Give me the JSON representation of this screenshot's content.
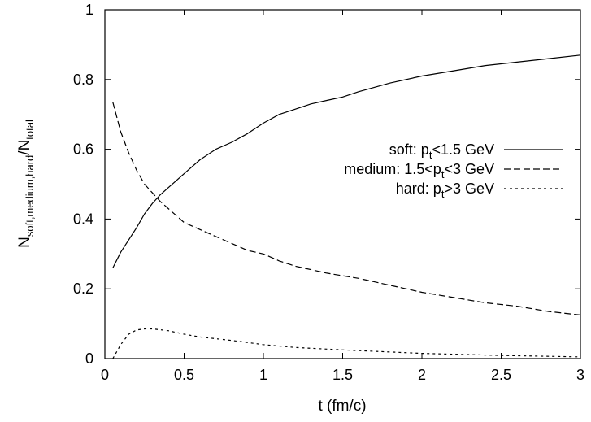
{
  "chart_data": {
    "type": "line",
    "xlabel": "t (fm/c)",
    "ylabel": {
      "main": "N",
      "sub1": "soft,medium,hard",
      "slash": "/N",
      "sub2": "total"
    },
    "xlim": [
      0,
      3
    ],
    "ylim": [
      0,
      1
    ],
    "x_ticks": [
      "0",
      "0.5",
      "1",
      "1.5",
      "2",
      "2.5",
      "3"
    ],
    "y_ticks": [
      "0",
      "0.2",
      "0.4",
      "0.6",
      "0.8",
      "1"
    ],
    "grid": false,
    "legend_position": "right",
    "series": [
      {
        "name": {
          "pre": "soft: p",
          "sub": "t",
          "post": "<1.5 GeV"
        },
        "dash": "solid",
        "x": [
          0.05,
          0.1,
          0.15,
          0.2,
          0.25,
          0.3,
          0.35,
          0.4,
          0.45,
          0.5,
          0.6,
          0.7,
          0.8,
          0.9,
          1.0,
          1.1,
          1.2,
          1.3,
          1.4,
          1.5,
          1.6,
          1.8,
          2.0,
          2.2,
          2.4,
          2.6,
          2.8,
          3.0
        ],
        "y": [
          0.26,
          0.305,
          0.34,
          0.375,
          0.415,
          0.445,
          0.47,
          0.49,
          0.51,
          0.53,
          0.57,
          0.6,
          0.62,
          0.645,
          0.675,
          0.7,
          0.715,
          0.73,
          0.74,
          0.75,
          0.765,
          0.79,
          0.81,
          0.825,
          0.84,
          0.85,
          0.86,
          0.87
        ]
      },
      {
        "name": {
          "pre": "medium: 1.5<p",
          "sub": "t",
          "post": "<3 GeV"
        },
        "dash": "long",
        "x": [
          0.05,
          0.1,
          0.15,
          0.2,
          0.25,
          0.3,
          0.35,
          0.4,
          0.45,
          0.5,
          0.6,
          0.7,
          0.8,
          0.9,
          1.0,
          1.1,
          1.2,
          1.4,
          1.6,
          1.8,
          2.0,
          2.2,
          2.4,
          2.6,
          2.8,
          3.0
        ],
        "y": [
          0.735,
          0.65,
          0.59,
          0.54,
          0.5,
          0.475,
          0.45,
          0.43,
          0.41,
          0.39,
          0.37,
          0.35,
          0.33,
          0.31,
          0.3,
          0.28,
          0.265,
          0.245,
          0.23,
          0.21,
          0.19,
          0.175,
          0.16,
          0.15,
          0.135,
          0.125
        ]
      },
      {
        "name": {
          "pre": "hard: p",
          "sub": "t",
          "post": ">3 GeV"
        },
        "dash": "short",
        "x": [
          0.05,
          0.1,
          0.15,
          0.2,
          0.25,
          0.3,
          0.4,
          0.5,
          0.6,
          0.8,
          1.0,
          1.2,
          1.5,
          2.0,
          2.5,
          3.0
        ],
        "y": [
          0.0,
          0.04,
          0.07,
          0.082,
          0.085,
          0.085,
          0.08,
          0.07,
          0.062,
          0.052,
          0.04,
          0.032,
          0.025,
          0.015,
          0.009,
          0.005
        ]
      }
    ]
  }
}
